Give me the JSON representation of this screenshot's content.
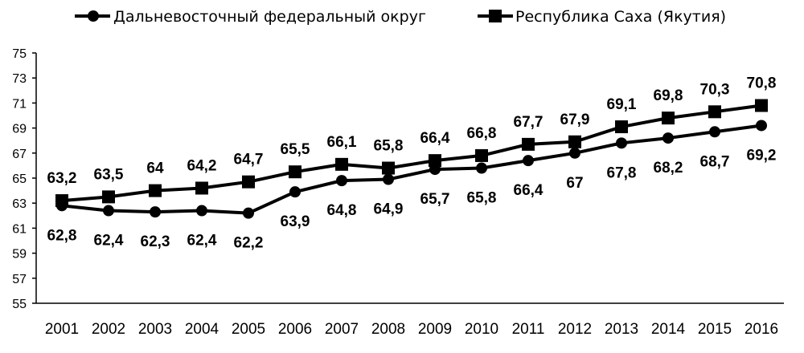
{
  "chart_data": {
    "type": "line",
    "x": [
      "2001",
      "2002",
      "2003",
      "2004",
      "2005",
      "2006",
      "2007",
      "2008",
      "2009",
      "2010",
      "2011",
      "2012",
      "2013",
      "2014",
      "2015",
      "2016"
    ],
    "series": [
      {
        "name": "Дальневосточный федеральный округ",
        "marker": "circle",
        "color": "#000000",
        "values": [
          62.8,
          62.4,
          62.3,
          62.4,
          62.2,
          63.9,
          64.8,
          64.9,
          65.7,
          65.8,
          66.4,
          67,
          67.8,
          68.2,
          68.7,
          69.2
        ],
        "labels": [
          "62,8",
          "62,4",
          "62,3",
          "62,4",
          "62,2",
          "63,9",
          "64,8",
          "64,9",
          "65,7",
          "65,8",
          "66,4",
          "67",
          "67,8",
          "68,2",
          "68,7",
          "69,2"
        ]
      },
      {
        "name": "Республика Саха (Якутия)",
        "marker": "square",
        "color": "#000000",
        "values": [
          63.2,
          63.5,
          64,
          64.2,
          64.7,
          65.5,
          66.1,
          65.8,
          66.4,
          66.8,
          67.7,
          67.9,
          69.1,
          69.8,
          70.3,
          70.8
        ],
        "labels": [
          "63,2",
          "63,5",
          "64",
          "64,2",
          "64,7",
          "65,5",
          "66,1",
          "65,8",
          "66,4",
          "66,8",
          "67,7",
          "67,9",
          "69,1",
          "69,8",
          "70,3",
          "70,8"
        ]
      }
    ],
    "ylim": [
      55,
      75
    ],
    "yticks": [
      "55",
      "57",
      "59",
      "61",
      "63",
      "65",
      "67",
      "69",
      "71",
      "73",
      "75"
    ],
    "legend_position": "top",
    "grid": false,
    "title": "",
    "xlabel": "",
    "ylabel": ""
  }
}
